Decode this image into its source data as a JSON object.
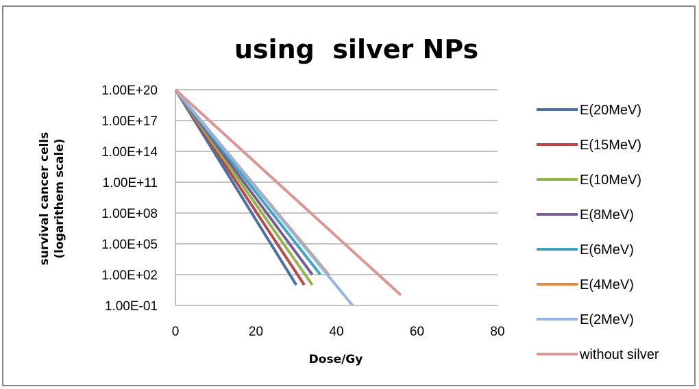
{
  "chart_data": {
    "type": "line",
    "title": "using  silver NPs",
    "xlabel": "Dose/Gy",
    "ylabel_lines": [
      "survival cancer cells",
      "(logarithem scale)"
    ],
    "x_ticks": [
      "0",
      "20",
      "40",
      "60",
      "80"
    ],
    "y_ticks": [
      "1.00E-01",
      "1.00E+02",
      "1.00E+05",
      "1.00E+08",
      "1.00E+11",
      "1.00E+14",
      "1.00E+17",
      "1.00E+20"
    ],
    "xlim": [
      0,
      80
    ],
    "ylim": [
      0.1,
      1e+20
    ],
    "y_scale": "log",
    "grid": "horizontal",
    "legend_position": "right",
    "series": [
      {
        "name": "E(20MeV)",
        "color": "#4a6fa5",
        "x": [
          0,
          30
        ],
        "y": [
          1e+20,
          10.0
        ]
      },
      {
        "name": "E(15MeV)",
        "color": "#b54a48",
        "x": [
          0,
          32
        ],
        "y": [
          1e+20,
          10.0
        ]
      },
      {
        "name": "E(10MeV)",
        "color": "#93b54e",
        "x": [
          0,
          34
        ],
        "y": [
          1e+20,
          10.0
        ]
      },
      {
        "name": "E(8MeV)",
        "color": "#7a5a99",
        "x": [
          0,
          34
        ],
        "y": [
          1e+20,
          100.0
        ]
      },
      {
        "name": "E(6MeV)",
        "color": "#3fa5bf",
        "x": [
          0,
          36
        ],
        "y": [
          1e+20,
          100.0
        ]
      },
      {
        "name": "E(4MeV)",
        "color": "#e8883a",
        "x": [
          0,
          38
        ],
        "y": [
          1e+20,
          100.0
        ]
      },
      {
        "name": "E(2MeV)",
        "color": "#98b3dc",
        "x": [
          0,
          44
        ],
        "y": [
          1e+20,
          0.1
        ]
      },
      {
        "name": "without silver",
        "color": "#d99694",
        "x": [
          0,
          56
        ],
        "y": [
          1e+20,
          1.0
        ]
      }
    ]
  }
}
